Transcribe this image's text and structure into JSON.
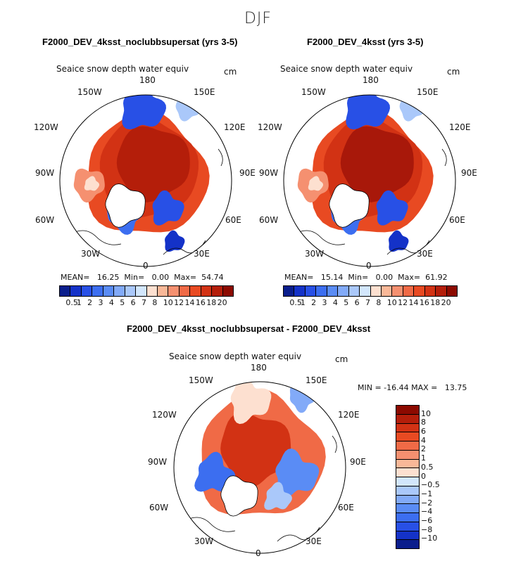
{
  "figure": {
    "season": "DJF",
    "variable": "Seaice snow depth water equiv",
    "units": "cm"
  },
  "labels": {
    "lon": [
      "180",
      "150E",
      "120E",
      "90E",
      "60E",
      "30E",
      "0",
      "30W",
      "60W",
      "90W",
      "120W",
      "150W"
    ]
  },
  "panels": [
    {
      "title": "F2000_DEV_4ksst_noclubbsupersat (yrs 3-5)",
      "mean_label": "MEAN=",
      "mean": "16.25",
      "min_label": "Min=",
      "min": "0.00",
      "max_label": "Max=",
      "max": "54.74"
    },
    {
      "title": "F2000_DEV_4ksst (yrs 3-5)",
      "mean_label": "MEAN=",
      "mean": "15.14",
      "min_label": "Min=",
      "min": "0.00",
      "max_label": "Max=",
      "max": "61.92"
    },
    {
      "title": "F2000_DEV_4ksst_noclubbsupersat - F2000_DEV_4ksst",
      "minmax_text": "MIN = -16.44 MAX =   13.75"
    }
  ],
  "colorbars": {
    "abs_levels": [
      "0.5",
      "1",
      "2",
      "3",
      "4",
      "5",
      "6",
      "7",
      "8",
      "10",
      "12",
      "14",
      "16",
      "18",
      "20"
    ],
    "abs_colors": [
      "#0a1e8c",
      "#1432c8",
      "#2850e6",
      "#3c6ef0",
      "#5a8cf5",
      "#82aaf8",
      "#aac8fa",
      "#d2e6fc",
      "#fde0d0",
      "#f9b898",
      "#f59070",
      "#f06a46",
      "#e84a22",
      "#d23214",
      "#b41e0a",
      "#8c0a00"
    ],
    "diff_levels": [
      "10",
      "8",
      "6",
      "4",
      "2",
      "1",
      "0.5",
      "0",
      "−0.5",
      "−1",
      "−2",
      "−4",
      "−6",
      "−8",
      "−10"
    ],
    "diff_colors": [
      "#8c0a00",
      "#b41e0a",
      "#d23214",
      "#e84a22",
      "#f06a46",
      "#f59070",
      "#f9b898",
      "#fde0d0",
      "#d2e6fc",
      "#aac8fa",
      "#82aaf8",
      "#5a8cf5",
      "#3c6ef0",
      "#2850e6",
      "#1432c8",
      "#0a1e8c"
    ]
  },
  "chart_data": [
    {
      "type": "heatmap",
      "title": "F2000_DEV_4ksst_noclubbsupersat (yrs 3-5)",
      "projection": "north polar stereographic",
      "variable": "Seaice snow depth water equiv",
      "units": "cm",
      "mean": 16.25,
      "min": 0.0,
      "max": 54.74,
      "levels": [
        0.5,
        1,
        2,
        3,
        4,
        5,
        6,
        7,
        8,
        10,
        12,
        14,
        16,
        18,
        20
      ]
    },
    {
      "type": "heatmap",
      "title": "F2000_DEV_4ksst (yrs 3-5)",
      "projection": "north polar stereographic",
      "variable": "Seaice snow depth water equiv",
      "units": "cm",
      "mean": 15.14,
      "min": 0.0,
      "max": 61.92,
      "levels": [
        0.5,
        1,
        2,
        3,
        4,
        5,
        6,
        7,
        8,
        10,
        12,
        14,
        16,
        18,
        20
      ]
    },
    {
      "type": "heatmap",
      "title": "F2000_DEV_4ksst_noclubbsupersat - F2000_DEV_4ksst",
      "projection": "north polar stereographic",
      "variable": "Seaice snow depth water equiv",
      "units": "cm",
      "min": -16.44,
      "max": 13.75,
      "levels": [
        -10,
        -8,
        -6,
        -4,
        -2,
        -1,
        -0.5,
        0,
        0.5,
        1,
        2,
        4,
        6,
        8,
        10
      ]
    }
  ]
}
